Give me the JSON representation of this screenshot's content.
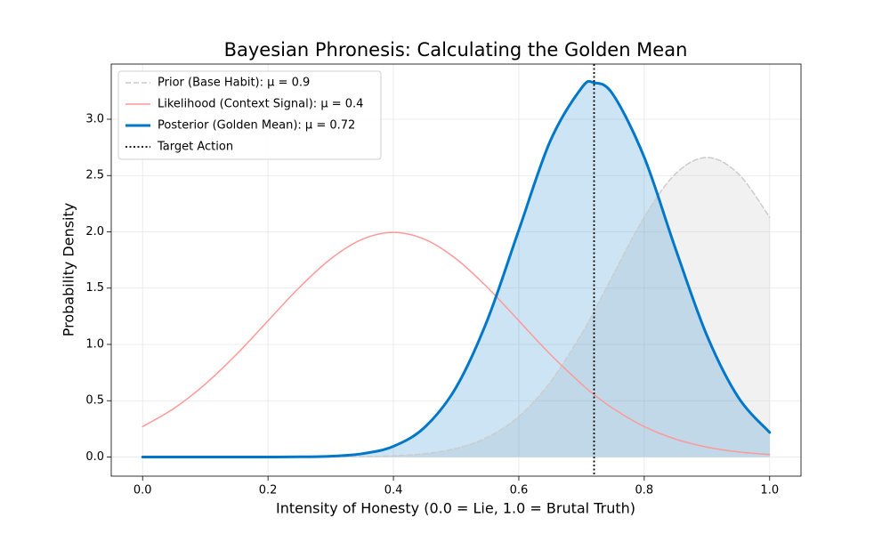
{
  "chart_data": {
    "type": "line",
    "title": "Bayesian Phronesis: Calculating the Golden Mean",
    "xlabel": "Intensity of Honesty (0.0 = Lie, 1.0 = Brutal Truth)",
    "ylabel": "Probability Density",
    "x": [
      0,
      0.05,
      0.1,
      0.15,
      0.2,
      0.25,
      0.3,
      0.35,
      0.4,
      0.45,
      0.5,
      0.55,
      0.6,
      0.65,
      0.7,
      0.72,
      0.75,
      0.8,
      0.85,
      0.9,
      0.95,
      1
    ],
    "series": [
      {
        "name": "Prior (Base Habit): μ = 0.9",
        "color": "#cccccc",
        "linestyle": "dashed",
        "linewidth": 1.5,
        "fill": true,
        "fill_color": "#bdbdbd",
        "fill_opacity": 0.22,
        "values": [
          0,
          0,
          0,
          0,
          0,
          0.0002,
          0.0009,
          0.0032,
          0.0103,
          0.0295,
          0.076,
          0.175,
          0.36,
          0.663,
          1.093,
          1.295,
          1.613,
          2.13,
          2.516,
          2.66,
          2.516,
          2.13
        ]
      },
      {
        "name": "Likelihood (Context Signal): μ = 0.4",
        "color": "#ff9999",
        "linestyle": "solid",
        "linewidth": 1.5,
        "fill": false,
        "values": [
          0.27,
          0.432,
          0.648,
          0.913,
          1.21,
          1.506,
          1.76,
          1.933,
          1.995,
          1.933,
          1.76,
          1.506,
          1.21,
          0.913,
          0.648,
          0.555,
          0.432,
          0.27,
          0.159,
          0.088,
          0.045,
          0.022
        ]
      },
      {
        "name": "Posterior (Golden Mean): μ = 0.72",
        "color": "#0077c8",
        "linestyle": "solid",
        "linewidth": 3,
        "fill": true,
        "fill_color": "#0077c8",
        "fill_opacity": 0.2,
        "values": [
          0,
          0,
          0,
          0,
          0.0003,
          0.0016,
          0.0073,
          0.029,
          0.095,
          0.265,
          0.619,
          1.219,
          2.016,
          2.805,
          3.278,
          3.324,
          3.222,
          2.662,
          1.848,
          1.079,
          0.53,
          0.218
        ]
      }
    ],
    "vline": {
      "name": "Target Action",
      "x": 0.72,
      "color": "#000000",
      "linestyle": "dotted"
    },
    "xlim": [
      -0.05,
      1.05
    ],
    "ylim": [
      -0.17,
      3.49
    ],
    "xticks": [
      {
        "value": 0,
        "label": "0.0"
      },
      0.2,
      0.4,
      0.6,
      0.8,
      {
        "value": 1,
        "label": "1.0"
      }
    ],
    "yticks": [
      {
        "value": 0,
        "label": "0.0"
      },
      0.5,
      {
        "value": 1,
        "label": "1.0"
      },
      1.5,
      {
        "value": 2,
        "label": "2.0"
      },
      2.5,
      {
        "value": 3,
        "label": "3.0"
      }
    ],
    "grid": true,
    "legend": "upper left"
  }
}
